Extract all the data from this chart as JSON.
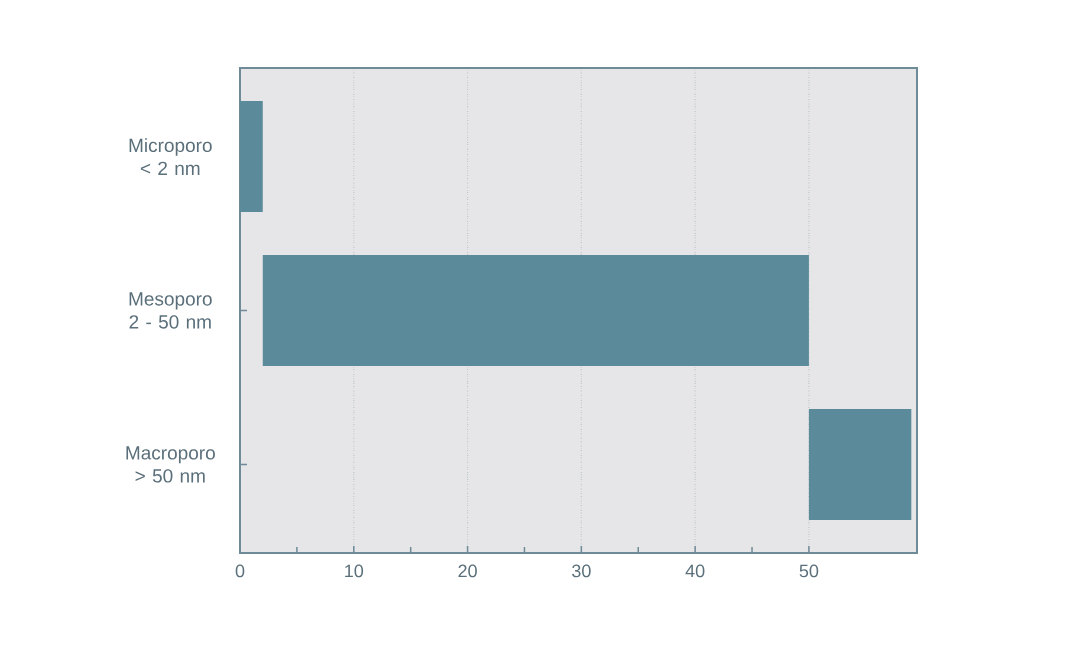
{
  "chart_data": {
    "type": "bar",
    "orientation": "horizontal",
    "categories": [
      "Microporo < 2 nm",
      "Mesoporo 2 - 50 nm",
      "Macroporo > 50 nm"
    ],
    "base": [
      0,
      2,
      50
    ],
    "values": [
      2,
      48,
      9
    ],
    "color": "#5b8b9b",
    "xlim": [
      0,
      59.5
    ],
    "xticks": [
      0,
      {
        "value": 5,
        "label": null
      },
      10,
      {
        "value": 15,
        "label": null
      },
      20,
      {
        "value": 25,
        "label": null
      },
      30,
      {
        "value": 35,
        "label": null
      },
      40,
      {
        "value": 45,
        "label": null
      },
      50
    ],
    "grid": "x"
  }
}
